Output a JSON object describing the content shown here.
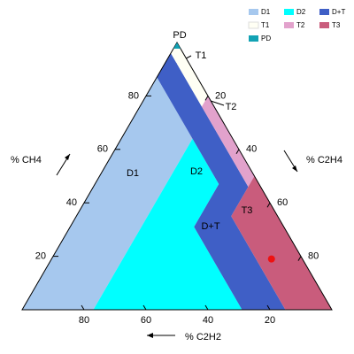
{
  "chart_data": {
    "type": "ternary",
    "axes": [
      {
        "title": "% CH4",
        "ticks": [
          20,
          40,
          60,
          80
        ]
      },
      {
        "title": "% C2H4",
        "ticks": [
          20,
          40,
          60,
          80
        ]
      },
      {
        "title": "% C2H2",
        "ticks": [
          20,
          40,
          60,
          80
        ]
      }
    ],
    "zones": [
      {
        "name": "D1",
        "color": "#a6c8ee",
        "vertices": [
          [
            87,
            0,
            13
          ],
          [
            0,
            0,
            100
          ],
          [
            0,
            23,
            77
          ],
          [
            64,
            23,
            13
          ]
        ]
      },
      {
        "name": "D2",
        "color": "#00ffff",
        "vertices": [
          [
            64,
            23,
            13
          ],
          [
            0,
            23,
            77
          ],
          [
            0,
            71,
            29
          ],
          [
            31,
            40,
            29
          ],
          [
            47,
            40,
            13
          ]
        ]
      },
      {
        "name": "D+T",
        "color": "#3f5fc6",
        "vertices": [
          [
            96,
            0,
            4
          ],
          [
            87,
            0,
            13
          ],
          [
            64,
            23,
            13
          ],
          [
            47,
            40,
            13
          ],
          [
            31,
            40,
            29
          ],
          [
            0,
            71,
            29
          ],
          [
            0,
            85,
            15
          ],
          [
            35,
            50,
            15
          ],
          [
            46,
            50,
            4
          ],
          [
            76,
            20,
            4
          ]
        ]
      },
      {
        "name": "T1",
        "color": "#fffff4",
        "vertices": [
          [
            98,
            0,
            2
          ],
          [
            98,
            2,
            0
          ],
          [
            80,
            20,
            0
          ],
          [
            76,
            20,
            4
          ],
          [
            96,
            0,
            4
          ]
        ]
      },
      {
        "name": "T2",
        "color": "#e2a2cc",
        "vertices": [
          [
            80,
            20,
            0
          ],
          [
            50,
            50,
            0
          ],
          [
            46,
            50,
            4
          ],
          [
            76,
            20,
            4
          ]
        ]
      },
      {
        "name": "T3",
        "color": "#c95c7c",
        "vertices": [
          [
            50,
            50,
            0
          ],
          [
            0,
            100,
            0
          ],
          [
            0,
            85,
            15
          ],
          [
            35,
            50,
            15
          ]
        ]
      },
      {
        "name": "PD",
        "color": "#12a2b4",
        "vertices": [
          [
            100,
            0,
            0
          ],
          [
            98,
            2,
            0
          ],
          [
            98,
            0,
            2
          ]
        ]
      }
    ],
    "points": [
      {
        "color": "#ee1111",
        "values": [
          19,
          71,
          10
        ]
      }
    ],
    "legend": "top-right"
  }
}
